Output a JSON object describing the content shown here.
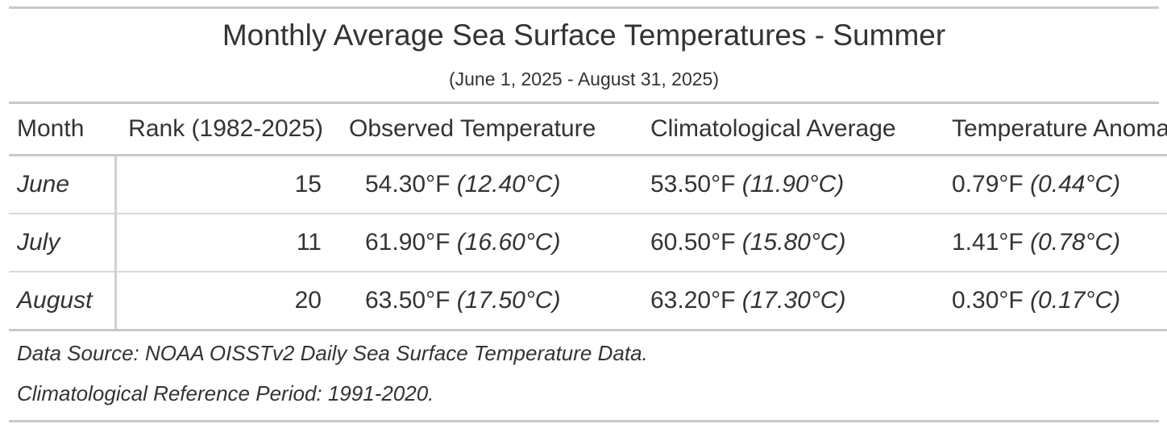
{
  "header": {
    "title": "Monthly Average Sea Surface Temperatures - Summer",
    "subtitle": "(June 1, 2025 - August 31, 2025)"
  },
  "columns": [
    "Month",
    "Rank (1982-2025)",
    "Observed Temperature",
    "Climatological Average",
    "Temperature Anomaly"
  ],
  "rows": [
    {
      "month": "June",
      "rank": "15",
      "observed_f": "54.30°F",
      "observed_c": "(12.40°C)",
      "average_f": "53.50°F",
      "average_c": "(11.90°C)",
      "anomaly_f": "0.79°F",
      "anomaly_c": "(0.44°C)"
    },
    {
      "month": "July",
      "rank": "11",
      "observed_f": "61.90°F",
      "observed_c": "(16.60°C)",
      "average_f": "60.50°F",
      "average_c": "(15.80°C)",
      "anomaly_f": "1.41°F",
      "anomaly_c": "(0.78°C)"
    },
    {
      "month": "August",
      "rank": "20",
      "observed_f": "63.50°F",
      "observed_c": "(17.50°C)",
      "average_f": "63.20°F",
      "average_c": "(17.30°C)",
      "anomaly_f": "0.30°F",
      "anomaly_c": "(0.17°C)"
    }
  ],
  "footnotes": [
    "Data Source: NOAA OISSTv2 Daily Sea Surface Temperature Data.",
    "Climatological Reference Period: 1991-2020."
  ]
}
